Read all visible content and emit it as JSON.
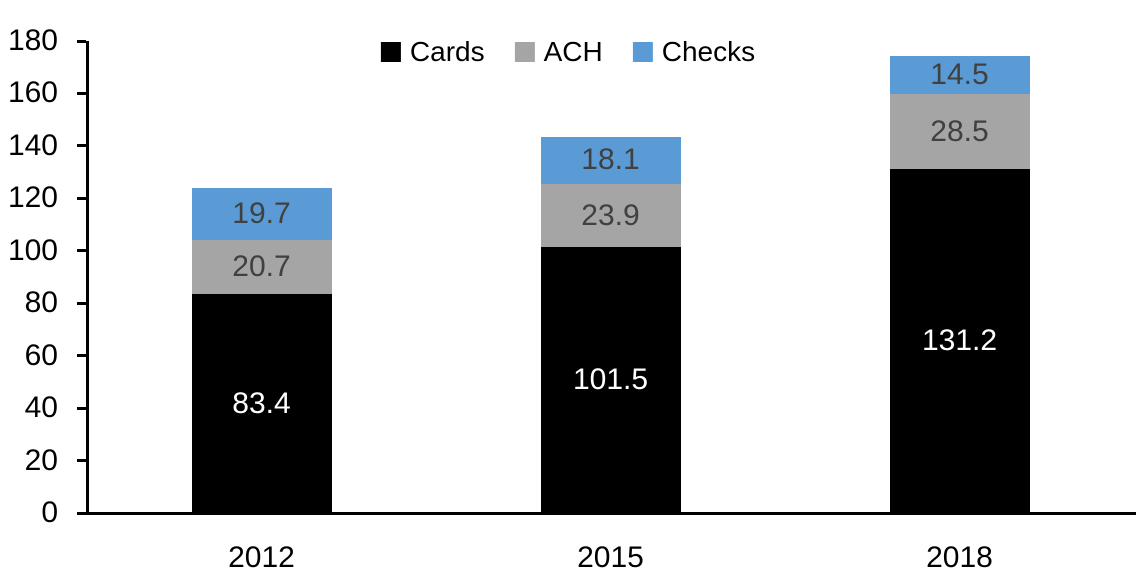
{
  "chart_data": {
    "type": "bar",
    "stacked": true,
    "title": "",
    "xlabel": "",
    "ylabel": "",
    "categories": [
      "2012",
      "2015",
      "2018"
    ],
    "series": [
      {
        "name": "Cards",
        "color": "#000000",
        "label_color": "#ffffff",
        "values": [
          83.4,
          101.5,
          131.2
        ]
      },
      {
        "name": "ACH",
        "color": "#a5a5a5",
        "label_color": "#404040",
        "values": [
          20.7,
          23.9,
          28.5
        ]
      },
      {
        "name": "Checks",
        "color": "#5b9bd5",
        "label_color": "#404040",
        "values": [
          19.7,
          18.1,
          14.5
        ]
      }
    ],
    "totals": [
      123.8,
      143.5,
      174.2
    ],
    "ylim": [
      0,
      180
    ],
    "yticks": [
      0,
      20,
      40,
      60,
      80,
      100,
      120,
      140,
      160,
      180
    ],
    "grid": false,
    "legend_position": "top",
    "axis_color": "#000000"
  }
}
